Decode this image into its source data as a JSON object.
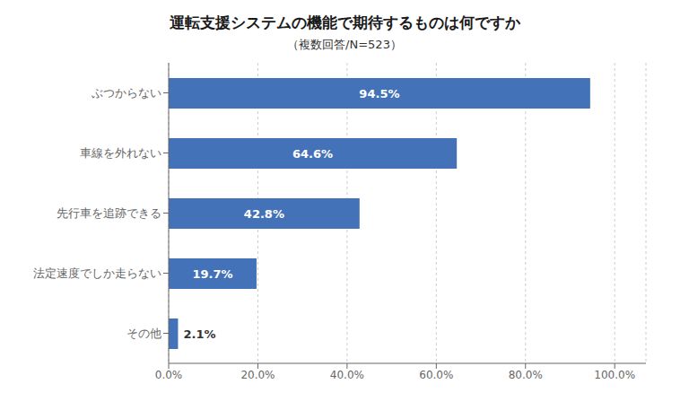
{
  "chart_data": {
    "type": "bar",
    "orientation": "horizontal",
    "title": "運転支援システムの機能で期待するものは何ですか",
    "subtitle": "（複数回答/N=523）",
    "categories": [
      "ぶつからない",
      "車線を外れない",
      "先行車を追跡できる",
      "法定速度でしか走らない",
      "その他"
    ],
    "values": [
      94.5,
      64.6,
      42.8,
      19.7,
      2.1
    ],
    "value_labels": [
      "94.5%",
      "64.6%",
      "42.8%",
      "19.7%",
      "2.1%"
    ],
    "data_labels": true,
    "color": "#4472B8",
    "xlim": [
      0,
      107
    ],
    "xticks": [
      {
        "value": 0,
        "label": "0.0%"
      },
      {
        "value": 20,
        "label": "20.0%"
      },
      {
        "value": 40,
        "label": "40.0%"
      },
      {
        "value": 60,
        "label": "60.0%"
      },
      {
        "value": 80,
        "label": "80.0%"
      },
      {
        "value": 100,
        "label": "100.0%"
      }
    ],
    "grid": true
  }
}
